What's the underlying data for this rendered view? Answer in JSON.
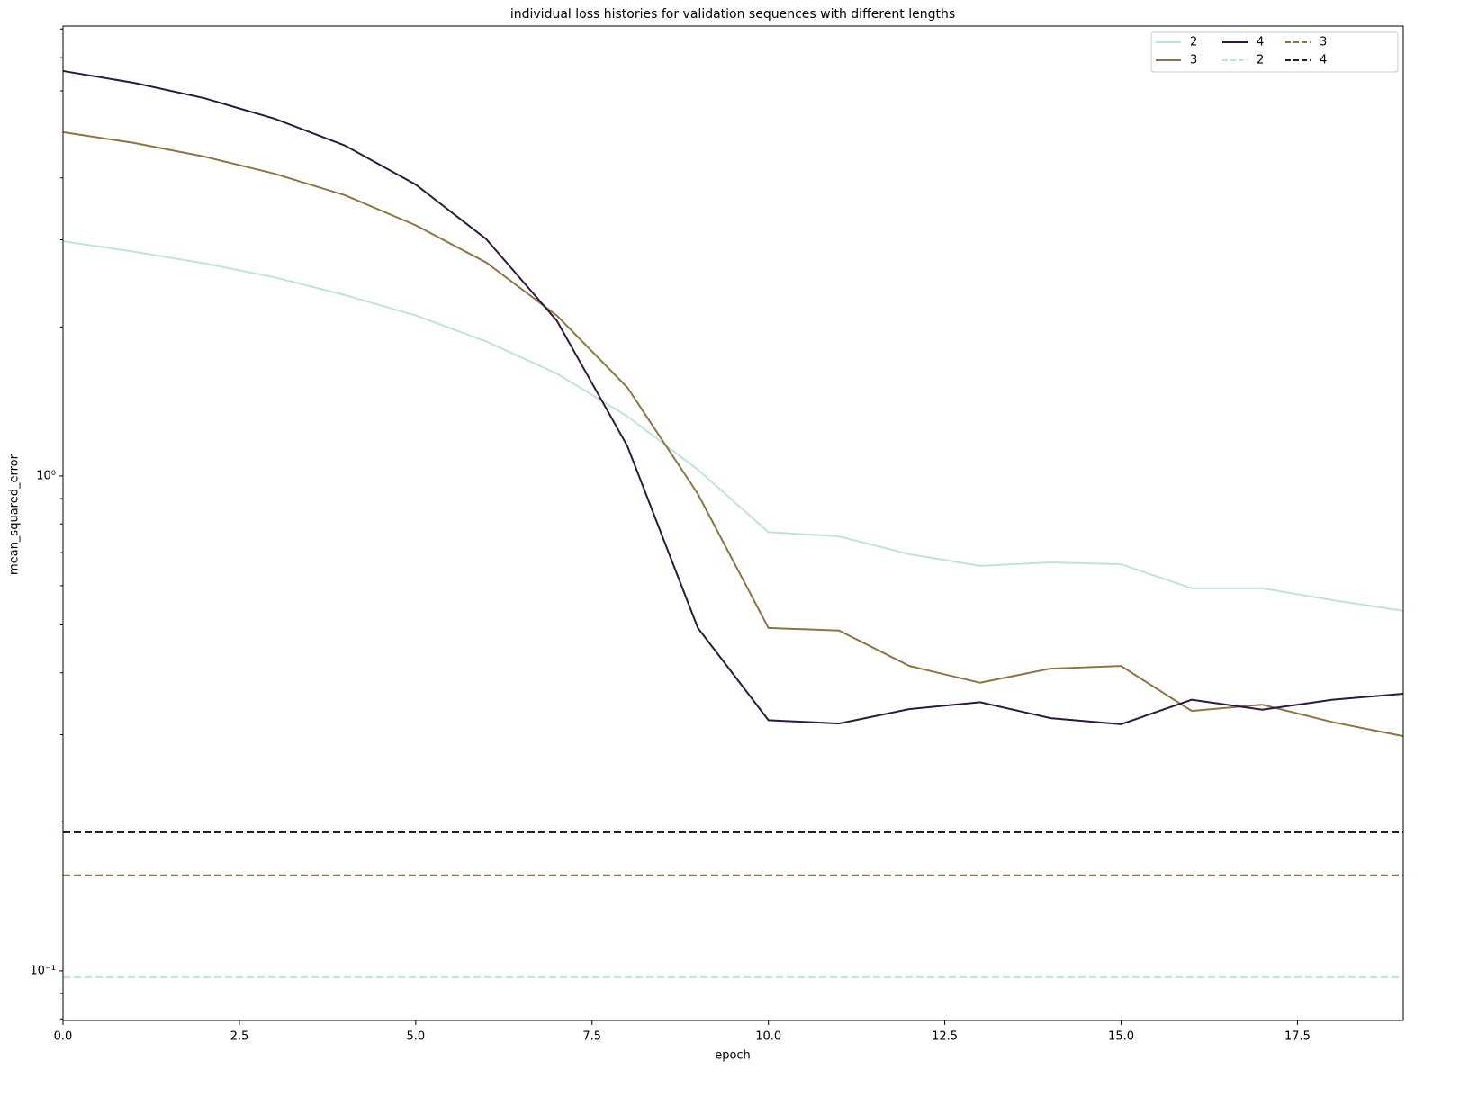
{
  "chart_data": {
    "type": "line",
    "title": "individual loss histories for validation sequences with different lengths",
    "xlabel": "epoch",
    "ylabel": "mean_squared_error",
    "x": [
      0,
      1,
      2,
      3,
      4,
      5,
      6,
      7,
      8,
      9,
      10,
      11,
      12,
      13,
      14,
      15,
      16,
      17,
      18,
      19
    ],
    "series": [
      {
        "name": "2",
        "color": "#bfe3dc",
        "values": [
          2.98,
          2.84,
          2.69,
          2.52,
          2.32,
          2.11,
          1.87,
          1.61,
          1.32,
          1.03,
          0.77,
          0.755,
          0.695,
          0.658,
          0.669,
          0.663,
          0.593,
          0.593,
          0.561,
          0.534
        ]
      },
      {
        "name": "3",
        "color": "#8b7548",
        "values": [
          4.95,
          4.71,
          4.42,
          4.08,
          3.69,
          3.21,
          2.7,
          2.11,
          1.51,
          0.92,
          0.493,
          0.487,
          0.413,
          0.382,
          0.408,
          0.413,
          0.335,
          0.345,
          0.318,
          0.298
        ]
      },
      {
        "name": "4",
        "color": "#2d1a3a",
        "values": [
          6.58,
          6.23,
          5.8,
          5.27,
          4.65,
          3.88,
          3.01,
          2.06,
          1.15,
          0.493,
          0.321,
          0.316,
          0.338,
          0.349,
          0.324,
          0.315,
          0.353,
          0.337,
          0.353,
          0.363
        ]
      }
    ],
    "hlines": [
      {
        "name": "2",
        "color": "#bfe3dc",
        "value": 0.0971
      },
      {
        "name": "3",
        "color": "#8b7548",
        "value": 0.156
      },
      {
        "name": "4",
        "color": "#2d1a3a",
        "value": 0.1905
      }
    ],
    "xlim": [
      0,
      19
    ],
    "xticks": [
      {
        "value": 0,
        "label": "0.0"
      },
      {
        "value": 2.5,
        "label": "2.5"
      },
      {
        "value": 5,
        "label": "5.0"
      },
      {
        "value": 7.5,
        "label": "7.5"
      },
      {
        "value": 10,
        "label": "10.0"
      },
      {
        "value": 12.5,
        "label": "12.5"
      },
      {
        "value": 15,
        "label": "15.0"
      },
      {
        "value": 17.5,
        "label": "17.5"
      }
    ],
    "ylim": [
      0.0794,
      8.11
    ],
    "yscale": "log",
    "yticks": [
      {
        "value": 0.1,
        "label": "10⁻¹"
      },
      {
        "value": 1,
        "label": "10⁰"
      }
    ],
    "yminorticks": [
      0.08,
      0.09,
      0.2,
      0.3,
      0.4,
      0.5,
      0.6,
      0.7,
      0.8,
      0.9,
      2,
      3,
      4,
      5,
      6,
      7,
      8
    ],
    "legend": "upper right"
  }
}
